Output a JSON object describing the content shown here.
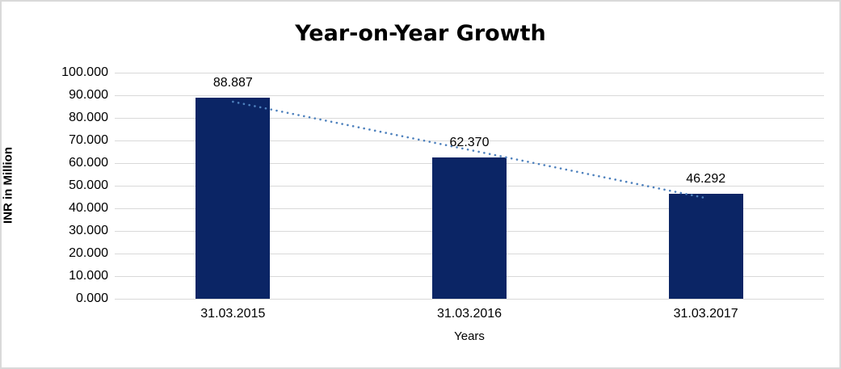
{
  "chart_data": {
    "type": "bar",
    "title": "Year-on-Year Growth",
    "xlabel": "Years",
    "ylabel": "INR in Million",
    "categories": [
      "31.03.2015",
      "31.03.2016",
      "31.03.2017"
    ],
    "values": [
      88.887,
      62.37,
      46.292
    ],
    "data_labels": [
      "88.887",
      "62.370",
      "46.292"
    ],
    "ylim": [
      0,
      100
    ],
    "ytick_step": 10,
    "ytick_labels_top_to_bottom": [
      "100.000",
      "90.000",
      "80.000",
      "70.000",
      "60.000",
      "50.000",
      "40.000",
      "30.000",
      "20.000",
      "10.000",
      "0.000"
    ],
    "grid": true,
    "legend": "none",
    "trendline": {
      "type": "linear",
      "style": "dotted"
    },
    "colors": {
      "bar": "#0b2565",
      "trendline": "#4e81bd",
      "gridline": "#d9d9d9",
      "frame_border": "#d9d9d9",
      "text": "#000000",
      "background": "#ffffff"
    }
  }
}
